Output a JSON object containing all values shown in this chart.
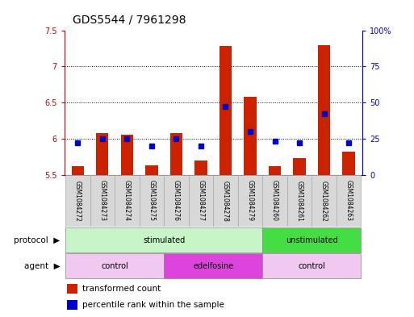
{
  "title": "GDS5544 / 7961298",
  "samples": [
    "GSM1084272",
    "GSM1084273",
    "GSM1084274",
    "GSM1084275",
    "GSM1084276",
    "GSM1084277",
    "GSM1084278",
    "GSM1084279",
    "GSM1084260",
    "GSM1084261",
    "GSM1084262",
    "GSM1084263"
  ],
  "transformed_count": [
    5.62,
    6.08,
    6.05,
    5.63,
    6.08,
    5.7,
    7.28,
    6.58,
    5.62,
    5.73,
    7.3,
    5.82
  ],
  "percentile_rank": [
    22,
    25,
    25,
    20,
    25,
    20,
    47,
    30,
    23,
    22,
    42,
    22
  ],
  "ylim_left": [
    5.5,
    7.5
  ],
  "ylim_right": [
    0,
    100
  ],
  "yticks_left": [
    5.5,
    6.0,
    6.5,
    7.0,
    7.5
  ],
  "ytick_labels_left": [
    "5.5",
    "6",
    "6.5",
    "7",
    "7.5"
  ],
  "yticks_right": [
    0,
    25,
    50,
    75,
    100
  ],
  "ytick_labels_right": [
    "0",
    "25",
    "50",
    "75",
    "100%"
  ],
  "protocol_groups": [
    {
      "label": "stimulated",
      "start": 0,
      "end": 7,
      "color": "#c8f5c8"
    },
    {
      "label": "unstimulated",
      "start": 8,
      "end": 11,
      "color": "#44dd44"
    }
  ],
  "agent_groups": [
    {
      "label": "control",
      "start": 0,
      "end": 3,
      "color": "#f0c8f0"
    },
    {
      "label": "edelfosine",
      "start": 4,
      "end": 7,
      "color": "#dd44dd"
    },
    {
      "label": "control",
      "start": 8,
      "end": 11,
      "color": "#f0c8f0"
    }
  ],
  "bar_color": "#cc2200",
  "dot_color": "#0000cc",
  "background_color": "#ffffff",
  "bar_width": 0.5,
  "grid_color": "#000000",
  "title_fontsize": 10,
  "tick_fontsize": 7,
  "label_fontsize": 7.5,
  "sample_box_color": "#d8d8d8",
  "sample_box_border": "#aaaaaa"
}
